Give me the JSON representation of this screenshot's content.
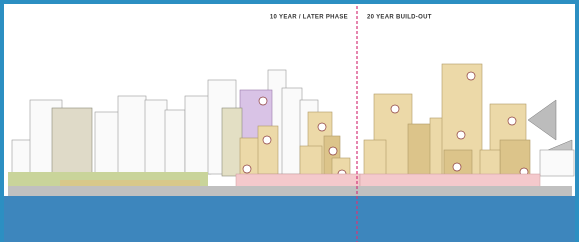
{
  "labels": {
    "left_phase": "10 YEAR / LATER PHASE",
    "right_phase": "20 YEAR BUILD-OUT"
  }
}
